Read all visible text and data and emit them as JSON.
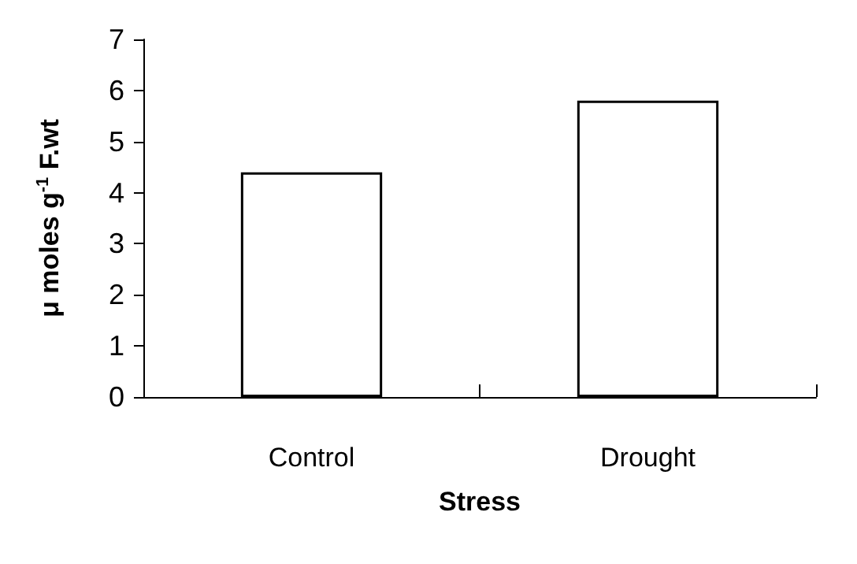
{
  "chart_data": {
    "type": "bar",
    "xlabel": "Stress",
    "ylabel": "μ moles g$^{-1}$ F.wt",
    "categories": [
      "Control",
      "Drought"
    ],
    "series": [
      {
        "color": "#ffffff",
        "values": [
          4.4,
          5.8
        ]
      }
    ],
    "ylim": [
      0,
      7
    ],
    "yticks": [
      0,
      1,
      2,
      3,
      4,
      5,
      6,
      7
    ]
  }
}
